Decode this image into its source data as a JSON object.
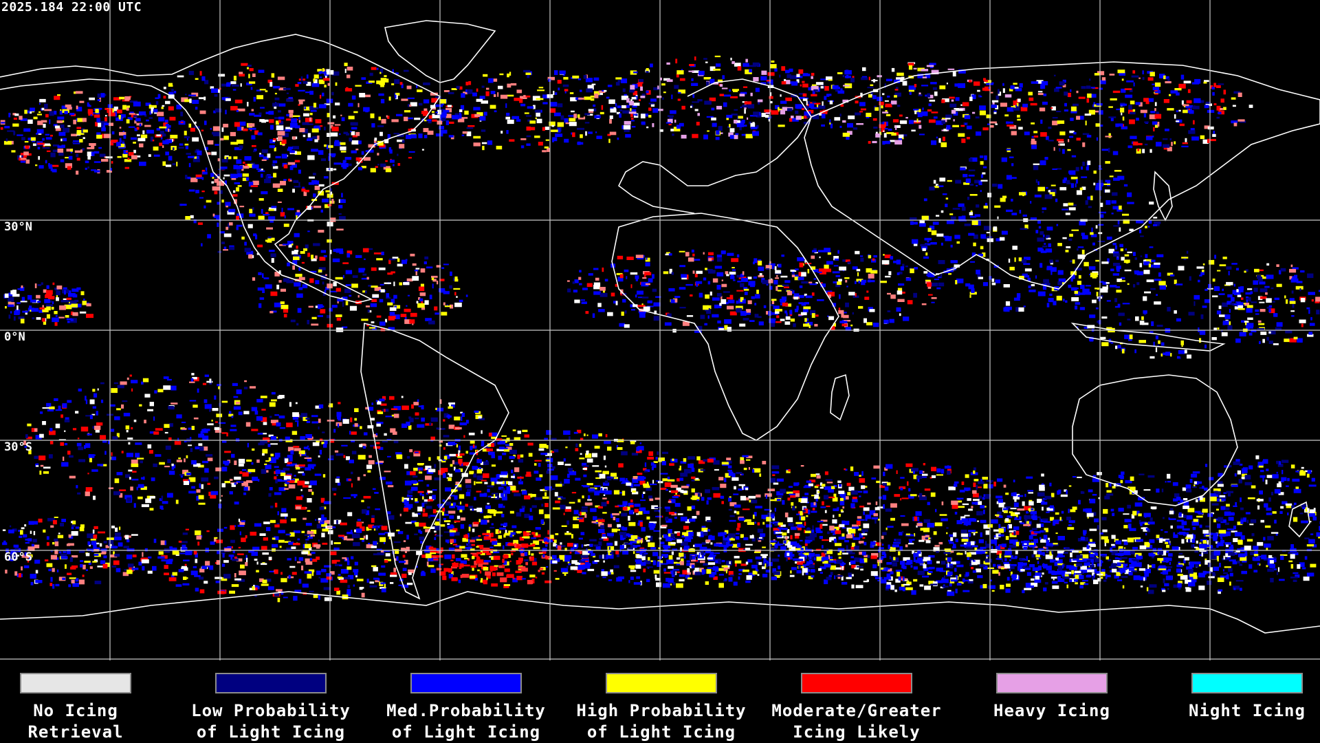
{
  "timestamp": "2025.184 22:00 UTC",
  "latitude_labels": [
    "30°N",
    "0°N",
    "30°S",
    "60°S"
  ],
  "grid_color": "#c8c8c8",
  "coast_color": "#ffffff",
  "legend": [
    {
      "label": "No Icing\nRetrieval",
      "color": "#e6e6e6"
    },
    {
      "label": "Low Probability\nof Light Icing",
      "color": "#000080"
    },
    {
      "label": "Med.Probability\nof Light Icing",
      "color": "#0000ff"
    },
    {
      "label": "High Probability\nof Light Icing",
      "color": "#ffff00"
    },
    {
      "label": "Moderate/Greater\nIcing Likely",
      "color": "#ff0000"
    },
    {
      "label": "Heavy Icing",
      "color": "#e6a0e6"
    },
    {
      "label": "Night Icing",
      "color": "#00ffff"
    }
  ]
}
